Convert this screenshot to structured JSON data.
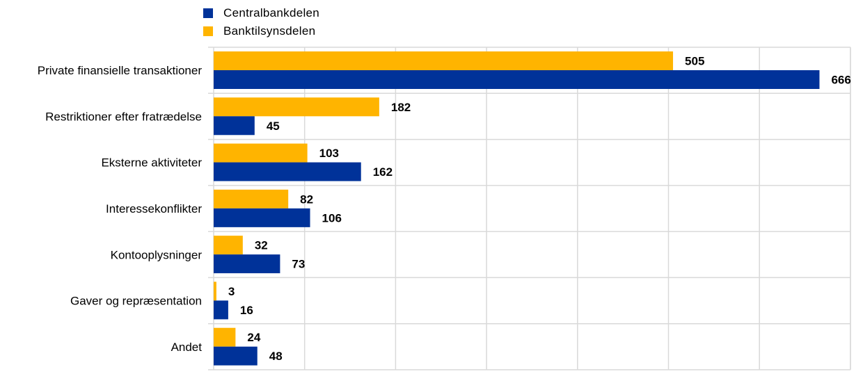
{
  "chart_data": {
    "type": "bar",
    "orientation": "horizontal",
    "categories": [
      "Private finansielle transaktioner",
      "Restriktioner efter fratrædelse",
      "Eksterne aktiviteter",
      "Interessekonflikter",
      "Kontooplysninger",
      "Gaver og repræsentation",
      "Andet"
    ],
    "series": [
      {
        "name": "Banktilsynsdelen",
        "color": "#FFB400",
        "values": [
          505,
          182,
          103,
          82,
          32,
          3,
          24
        ]
      },
      {
        "name": "Centralbankdelen",
        "color": "#003299",
        "values": [
          666,
          45,
          162,
          106,
          73,
          16,
          48
        ]
      }
    ],
    "legend": [
      {
        "name": "Centralbankdelen",
        "color": "#003299"
      },
      {
        "name": "Banktilsynsdelen",
        "color": "#FFB400"
      }
    ],
    "xlim": [
      0,
      700
    ],
    "x_gridline_step": 100,
    "grid": true,
    "legend_placement": "top-left",
    "data_labels": true,
    "title": "",
    "xlabel": "",
    "ylabel": ""
  }
}
